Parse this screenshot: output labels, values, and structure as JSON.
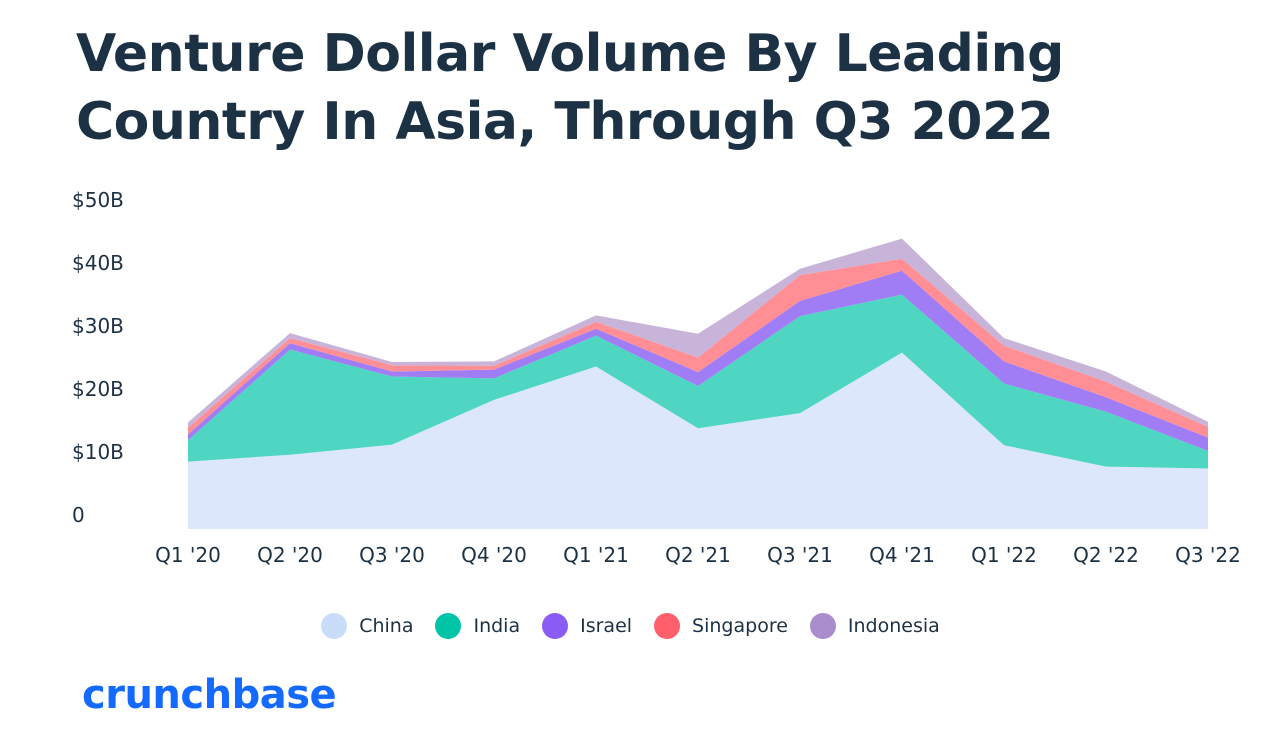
{
  "title": "Venture Dollar Volume By Leading Country In Asia, Through Q3 2022",
  "brand": "crunchbase",
  "chart_data": {
    "type": "area",
    "stacked": true,
    "title": "Venture Dollar Volume By Leading Country In Asia, Through Q3 2022",
    "xlabel": "",
    "ylabel": "",
    "categories": [
      "Q1 '20",
      "Q2 '20",
      "Q3 '20",
      "Q4 '20",
      "Q1 '21",
      "Q2 '21",
      "Q3 '21",
      "Q4 '21",
      "Q1 '22",
      "Q2 '22",
      "Q3 '22"
    ],
    "y_ticks": [
      0,
      10,
      20,
      30,
      40,
      50
    ],
    "y_tick_labels": [
      "0",
      "$10B",
      "$20B",
      "$30B",
      "$40B",
      "$50B"
    ],
    "ylim": [
      0,
      50
    ],
    "unit": "$B",
    "grid": false,
    "legend_position": "bottom-center",
    "series": [
      {
        "name": "China",
        "color": "#dce7fb",
        "legend_color": "#c9dcfa",
        "values": [
          10.7,
          11.8,
          13.4,
          20.5,
          25.8,
          16.0,
          18.4,
          28.0,
          13.3,
          9.9,
          9.6
        ]
      },
      {
        "name": "India",
        "color": "#4ed6c2",
        "legend_color": "#00c4a8",
        "values": [
          3.4,
          16.7,
          10.8,
          3.4,
          4.9,
          6.7,
          15.4,
          9.2,
          9.8,
          8.7,
          2.8
        ]
      },
      {
        "name": "Israel",
        "color": "#a07cf5",
        "legend_color": "#8a5cf5",
        "values": [
          0.9,
          1.0,
          0.8,
          1.4,
          1.1,
          2.2,
          2.4,
          3.8,
          3.5,
          2.3,
          2.1
        ]
      },
      {
        "name": "Singapore",
        "color": "#ff8e95",
        "legend_color": "#ff5f6a",
        "values": [
          1.1,
          0.8,
          1.0,
          0.6,
          1.1,
          2.3,
          4.1,
          1.9,
          2.5,
          2.5,
          1.7
        ]
      },
      {
        "name": "Indonesia",
        "color": "#c8b4d8",
        "legend_color": "#a98dcc",
        "values": [
          0.8,
          0.8,
          0.5,
          0.7,
          1.0,
          3.8,
          1.0,
          3.2,
          1.2,
          1.6,
          0.8
        ]
      }
    ]
  }
}
